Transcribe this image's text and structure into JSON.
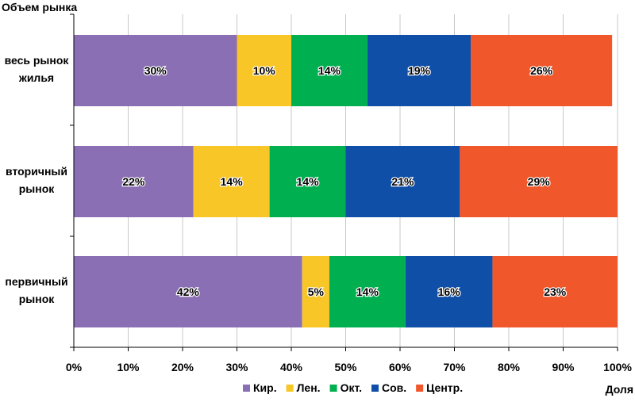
{
  "chart_data": {
    "type": "bar",
    "orientation": "horizontal",
    "stacked": true,
    "ylabel": "Объем рынка",
    "xlabel": "Доля",
    "xlim": [
      0,
      100
    ],
    "xticks": [
      "0%",
      "10%",
      "20%",
      "30%",
      "40%",
      "50%",
      "60%",
      "70%",
      "80%",
      "90%",
      "100%"
    ],
    "categories": [
      [
        "весь рынок",
        "жилья"
      ],
      [
        "вторичный",
        "рынок"
      ],
      [
        "первичный",
        "рынок"
      ]
    ],
    "series": [
      {
        "name": "Кир.",
        "color": "#8b6fb5",
        "values": [
          30,
          22,
          42
        ],
        "labels": [
          "30%",
          "22%",
          "42%"
        ]
      },
      {
        "name": "Лен.",
        "color": "#f9c628",
        "values": [
          10,
          14,
          5
        ],
        "labels": [
          "10%",
          "14%",
          "5%"
        ]
      },
      {
        "name": "Окт.",
        "color": "#00b050",
        "values": [
          14,
          14,
          14
        ],
        "labels": [
          "14%",
          "14%",
          "14%"
        ]
      },
      {
        "name": "Сов.",
        "color": "#0f4fa8",
        "values": [
          19,
          21,
          16
        ],
        "labels": [
          "19%",
          "21%",
          "16%"
        ]
      },
      {
        "name": "Центр.",
        "color": "#f0572a",
        "values": [
          26,
          29,
          23
        ],
        "labels": [
          "26%",
          "29%",
          "23%"
        ]
      }
    ],
    "grid": {
      "vertical": true,
      "horizontal": false
    },
    "legend_position": "bottom"
  }
}
